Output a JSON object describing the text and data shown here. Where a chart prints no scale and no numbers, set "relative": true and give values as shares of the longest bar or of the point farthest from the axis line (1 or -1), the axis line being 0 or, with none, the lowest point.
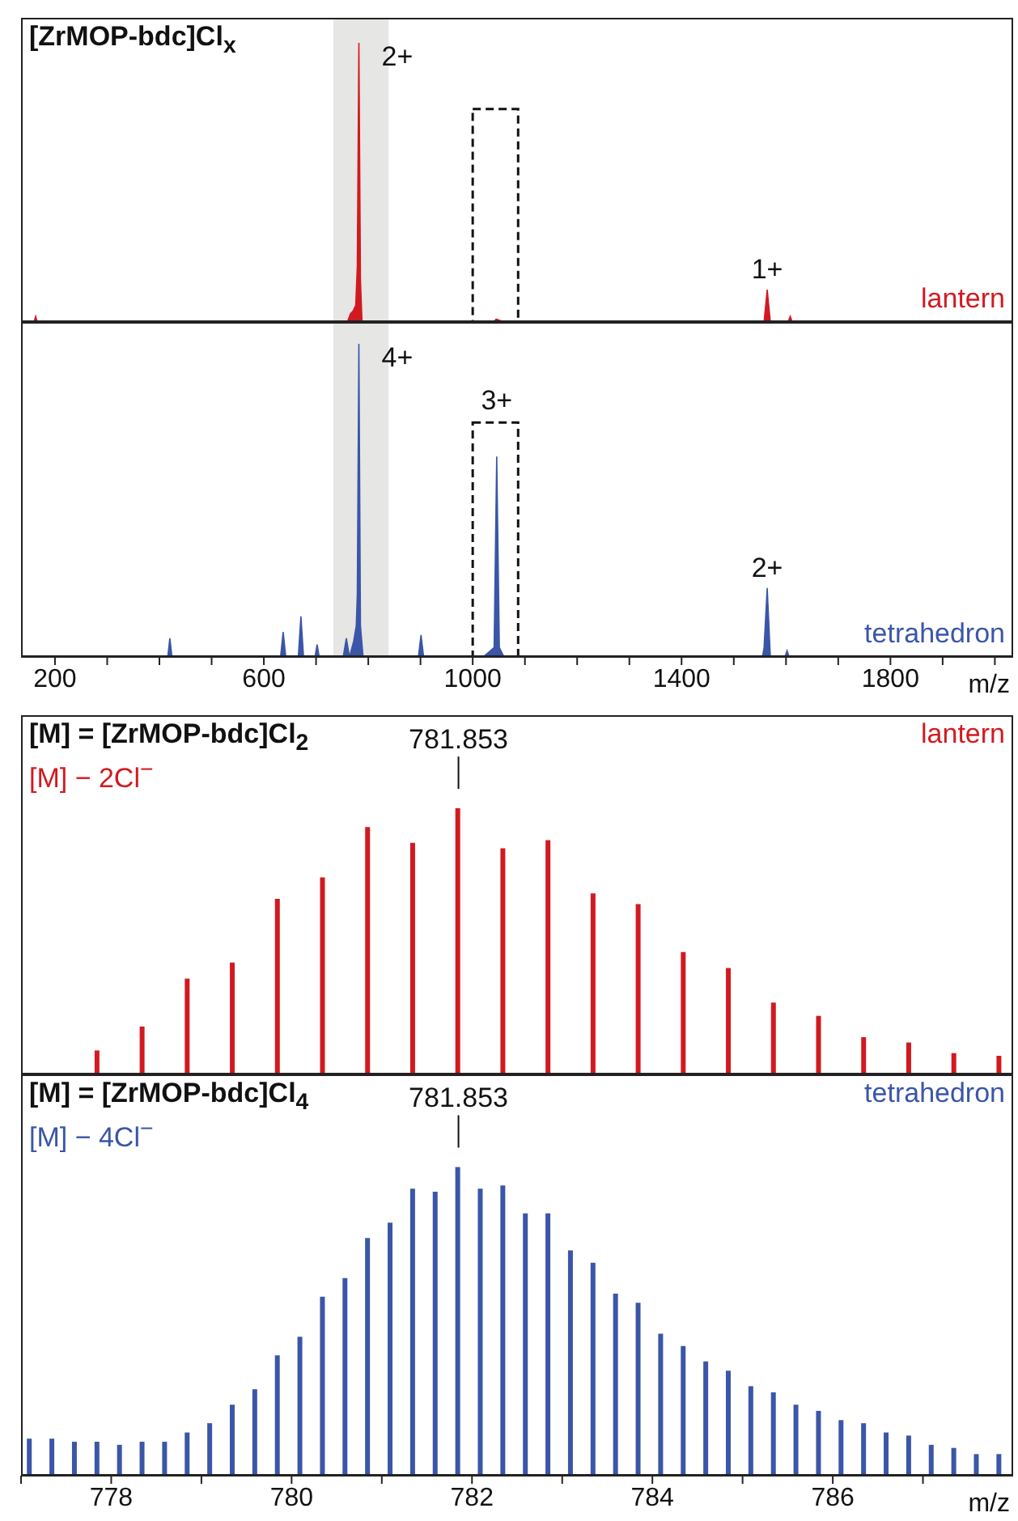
{
  "chart_data": [
    {
      "type": "area",
      "title": "[ZrMOP-bdc]Cl$_{x}$",
      "relative": true,
      "xlim": [
        135,
        2035
      ],
      "tick_labels": false,
      "legend": "bottom right",
      "series": [
        {
          "name": "lantern",
          "color": "#d11a20",
          "x": [
            140,
            160,
            163,
            166,
            200,
            700,
            760,
            766,
            771,
            776,
            779,
            782,
            785,
            788,
            800,
            1000,
            1040,
            1045,
            1060,
            1558,
            1564,
            1570,
            1604,
            1608,
            1612,
            2030
          ],
          "values": [
            0,
            0,
            0.02,
            0,
            0,
            0,
            0,
            0.03,
            0.04,
            0.06,
            0.2,
            1,
            0.15,
            0,
            0,
            0,
            0,
            0.01,
            0,
            0,
            0.116,
            0,
            0,
            0.02,
            0,
            0
          ]
        }
      ],
      "bands": [
        {
          "axis": "x",
          "from": 733,
          "to": 839,
          "color": "#e6e6e4"
        },
        {
          "axis": "x",
          "from": 1000,
          "to": 1087,
          "color": "#ffffff"
        }
      ],
      "annotations": [
        {
          "text": "2+",
          "x": 782,
          "y": 1
        },
        {
          "text": "1+",
          "x": 1564,
          "y": 0.116
        }
      ]
    },
    {
      "type": "area",
      "relative": true,
      "xlim": [
        135,
        2035
      ],
      "xlabel": "m/z",
      "tick_labels": "x",
      "legend": "bottom right",
      "xticks": [
        200,
        {
          "value": 300,
          "label": null
        },
        {
          "value": 400,
          "label": null
        },
        {
          "value": 500,
          "label": null
        },
        600,
        {
          "value": 700,
          "label": null
        },
        {
          "value": 800,
          "label": null
        },
        {
          "value": 900,
          "label": null
        },
        1000,
        {
          "value": 1100,
          "label": null
        },
        {
          "value": 1200,
          "label": null
        },
        {
          "value": 1300,
          "label": null
        },
        1400,
        {
          "value": 1500,
          "label": null
        },
        {
          "value": 1600,
          "label": null
        },
        {
          "value": 1700,
          "label": null
        },
        1800,
        {
          "value": 1900,
          "label": null
        },
        {
          "value": 2000,
          "label": null
        }
      ],
      "series": [
        {
          "name": "tetrahedron",
          "color": "#3b56a8",
          "x": [
            140,
            416,
            420,
            424,
            632,
            637,
            642,
            666,
            671,
            676,
            698,
            702,
            706,
            752,
            758,
            764,
            772,
            777,
            779,
            782,
            785,
            790,
            896,
            901,
            906,
            1020,
            1041,
            1046,
            1051,
            1060,
            1555,
            1558,
            1564,
            1570,
            1598,
            1602,
            1606,
            2030
          ],
          "values": [
            0,
            0,
            0.06,
            0,
            0,
            0.08,
            0,
            0,
            0.13,
            0,
            0,
            0.04,
            0,
            0,
            0.06,
            0,
            0.05,
            0.1,
            0.2,
            1,
            0.1,
            0,
            0,
            0.07,
            0,
            0,
            0.03,
            0.64,
            0.03,
            0,
            0,
            0.03,
            0.22,
            0,
            0,
            0.02,
            0,
            0
          ]
        }
      ],
      "bands": [
        {
          "axis": "x",
          "from": 733,
          "to": 839,
          "color": "#e6e6e4"
        },
        {
          "axis": "x",
          "from": 1000,
          "to": 1087,
          "color": "#ffffff"
        }
      ],
      "annotations": [
        {
          "text": "4+",
          "x": 782,
          "y": 1
        },
        {
          "text": "3+",
          "x": 1046,
          "y": 0.64
        },
        {
          "text": "2+",
          "x": 1564,
          "y": 0.22
        }
      ]
    },
    {
      "type": "bar",
      "title": "[M] = [ZrMOP-bdc]Cl$_{2}$",
      "subtitle": "[M] − 2Cl$^{−}$",
      "relative": true,
      "xlim": [
        777,
        788
      ],
      "tick_labels": false,
      "legend": "top right",
      "series": [
        {
          "name": "lantern",
          "color": "#d11a20",
          "x": [
            777.85,
            778.35,
            778.85,
            779.35,
            779.85,
            780.35,
            780.85,
            781.35,
            781.85,
            782.35,
            782.85,
            783.35,
            783.85,
            784.35,
            784.85,
            785.35,
            785.85,
            786.35,
            786.85,
            787.35,
            787.85
          ],
          "values": [
            0.09,
            0.18,
            0.36,
            0.42,
            0.66,
            0.74,
            0.93,
            0.87,
            1,
            0.85,
            0.88,
            0.68,
            0.64,
            0.46,
            0.4,
            0.27,
            0.22,
            0.14,
            0.12,
            0.08,
            0.07
          ]
        }
      ],
      "annotations": [
        {
          "text": "781.853",
          "x": 781.85,
          "y": 1
        }
      ]
    },
    {
      "type": "bar",
      "title": "[M] = [ZrMOP-bdc]Cl$_{4}$",
      "subtitle": "[M] − 4Cl$^{−}$",
      "relative": true,
      "xlim": [
        777,
        788
      ],
      "xlabel": "m/z",
      "tick_labels": "x",
      "legend": "top right",
      "xticks": [
        {
          "value": 777,
          "label": null
        },
        778,
        {
          "value": 779,
          "label": null
        },
        780,
        {
          "value": 781,
          "label": null
        },
        782,
        {
          "value": 783,
          "label": null
        },
        784,
        {
          "value": 785,
          "label": null
        },
        786,
        {
          "value": 787,
          "label": null
        }
      ],
      "series": [
        {
          "name": "tetrahedron",
          "color": "#3b56a8",
          "x": [
            777.1,
            777.35,
            777.6,
            777.85,
            778.1,
            778.35,
            778.6,
            778.85,
            779.1,
            779.35,
            779.6,
            779.85,
            780.1,
            780.35,
            780.6,
            780.85,
            781.1,
            781.35,
            781.6,
            781.85,
            782.1,
            782.35,
            782.6,
            782.85,
            783.1,
            783.35,
            783.6,
            783.85,
            784.1,
            784.35,
            784.6,
            784.85,
            785.1,
            785.35,
            785.6,
            785.85,
            786.1,
            786.35,
            786.6,
            786.85,
            787.1,
            787.35,
            787.6,
            787.85
          ],
          "values": [
            0.12,
            0.12,
            0.11,
            0.11,
            0.1,
            0.11,
            0.11,
            0.14,
            0.17,
            0.23,
            0.28,
            0.39,
            0.45,
            0.58,
            0.64,
            0.77,
            0.82,
            0.93,
            0.92,
            1,
            0.93,
            0.94,
            0.85,
            0.85,
            0.73,
            0.69,
            0.59,
            0.56,
            0.46,
            0.42,
            0.37,
            0.34,
            0.29,
            0.27,
            0.23,
            0.21,
            0.18,
            0.17,
            0.14,
            0.13,
            0.1,
            0.09,
            0.07,
            0.07
          ]
        }
      ],
      "annotations": [
        {
          "text": "781.853",
          "x": 781.85,
          "y": 1
        }
      ]
    }
  ]
}
